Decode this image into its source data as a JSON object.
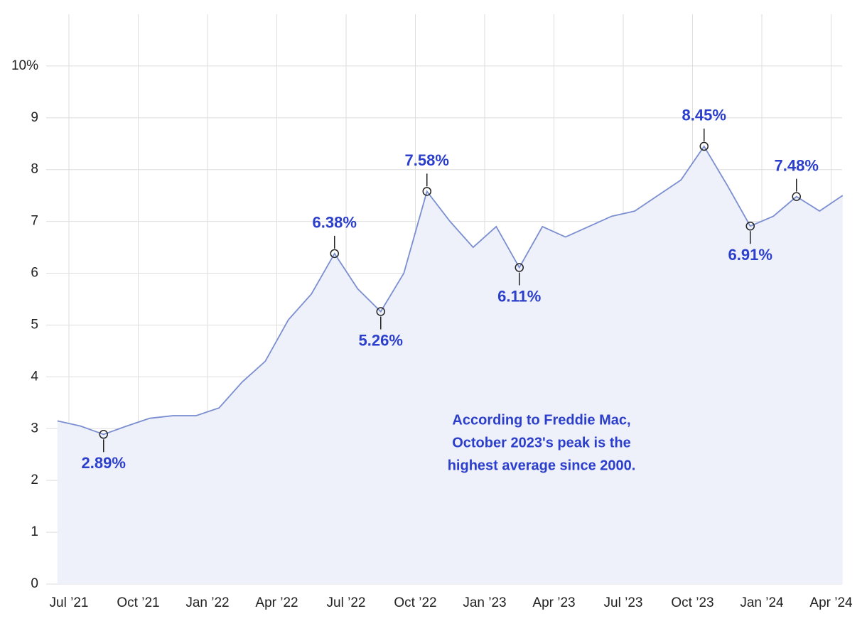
{
  "chart_data": {
    "type": "area",
    "x": [
      "2021-06",
      "2021-07",
      "2021-08",
      "2021-09",
      "2021-10",
      "2021-11",
      "2021-12",
      "2022-01",
      "2022-02",
      "2022-03",
      "2022-04",
      "2022-05",
      "2022-06",
      "2022-07",
      "2022-08",
      "2022-09",
      "2022-10",
      "2022-11",
      "2022-12",
      "2023-01",
      "2023-02",
      "2023-03",
      "2023-04",
      "2023-05",
      "2023-06",
      "2023-07",
      "2023-08",
      "2023-09",
      "2023-10",
      "2023-11",
      "2023-12",
      "2024-01",
      "2024-02",
      "2024-03",
      "2024-04"
    ],
    "series": [
      {
        "color": "#7b8fd0",
        "values": [
          3.15,
          3.05,
          2.89,
          3.05,
          3.2,
          3.25,
          3.25,
          3.4,
          3.9,
          4.3,
          5.1,
          5.6,
          6.38,
          5.7,
          5.26,
          6.0,
          7.58,
          7.0,
          6.5,
          6.9,
          6.11,
          6.9,
          6.7,
          6.9,
          7.1,
          7.2,
          7.5,
          7.8,
          8.45,
          7.7,
          6.91,
          7.1,
          7.48,
          7.2,
          7.5
        ],
        "value_labels": [
          null,
          null,
          "2.89%",
          null,
          null,
          null,
          null,
          null,
          null,
          null,
          null,
          null,
          "6.38%",
          null,
          "5.26%",
          null,
          "7.58%",
          null,
          null,
          null,
          "6.11%",
          null,
          null,
          null,
          null,
          null,
          null,
          null,
          "8.45%",
          null,
          "6.91%",
          null,
          "7.48%",
          null,
          null
        ]
      }
    ],
    "xticks": [
      {
        "value": "2021-07",
        "label": "Jul ’21"
      },
      {
        "value": "2021-10",
        "label": "Oct ’21"
      },
      {
        "value": "2022-01",
        "label": "Jan ’22"
      },
      {
        "value": "2022-04",
        "label": "Apr ’22"
      },
      {
        "value": "2022-07",
        "label": "Jul ’22"
      },
      {
        "value": "2022-10",
        "label": "Oct ’22"
      },
      {
        "value": "2023-01",
        "label": "Jan ’23"
      },
      {
        "value": "2023-04",
        "label": "Apr ’23"
      },
      {
        "value": "2023-07",
        "label": "Jul ’23"
      },
      {
        "value": "2023-10",
        "label": "Oct ’23"
      },
      {
        "value": "2024-01",
        "label": "Jan ’24"
      },
      {
        "value": "2024-04",
        "label": "Apr ’24"
      }
    ],
    "ylim": [
      0,
      11
    ],
    "yticks": [
      0,
      1,
      2,
      3,
      4,
      5,
      6,
      7,
      8,
      9,
      {
        "value": 10,
        "label": "10%"
      }
    ],
    "grid": true,
    "area_color": "#eef0fa",
    "label_color": "#2b3fcc",
    "annotation": [
      "According to Freddie Mac,",
      "October 2023's peak is the",
      "highest average since 2000."
    ]
  }
}
